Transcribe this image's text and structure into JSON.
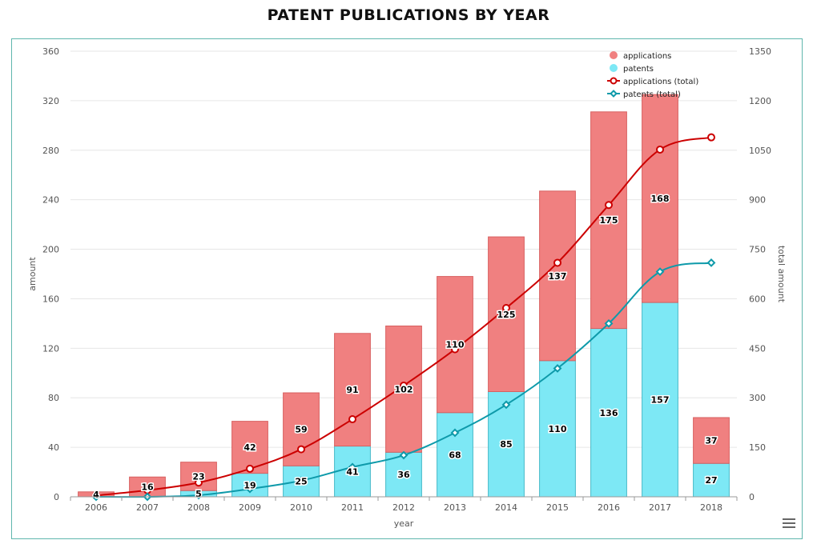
{
  "title": "PATENT PUBLICATIONS BY YEAR",
  "chart_data": {
    "type": "bar",
    "stacked": true,
    "title": "PATENT PUBLICATIONS BY YEAR",
    "xlabel": "year",
    "ylabel": "amount",
    "y2label": "total amount",
    "categories": [
      "2006",
      "2007",
      "2008",
      "2009",
      "2010",
      "2011",
      "2012",
      "2013",
      "2014",
      "2015",
      "2016",
      "2017",
      "2018"
    ],
    "ylim": [
      0,
      360
    ],
    "yticks": [
      0,
      40,
      80,
      120,
      160,
      200,
      240,
      280,
      320,
      360
    ],
    "y2lim": [
      0,
      1350
    ],
    "y2ticks": [
      0,
      150,
      300,
      450,
      600,
      750,
      900,
      1050,
      1200,
      1350
    ],
    "grid": true,
    "legend": "top-right",
    "series": [
      {
        "name": "applications",
        "kind": "bar",
        "axis": "left",
        "color": "#f08080",
        "values": [
          4,
          16,
          23,
          42,
          59,
          91,
          102,
          110,
          125,
          137,
          175,
          168,
          37
        ]
      },
      {
        "name": "patents",
        "kind": "bar",
        "axis": "left",
        "color": "#7de8f5",
        "values": [
          0,
          0,
          5,
          19,
          25,
          41,
          36,
          68,
          85,
          110,
          136,
          157,
          27
        ]
      },
      {
        "name": "applications (total)",
        "kind": "line",
        "axis": "right",
        "color": "#cc0000",
        "values": [
          4,
          20,
          43,
          85,
          144,
          235,
          337,
          447,
          572,
          709,
          884,
          1052,
          1089
        ]
      },
      {
        "name": "patents (total)",
        "kind": "line",
        "axis": "right",
        "color": "#0e9aaa",
        "values": [
          0,
          0,
          5,
          24,
          49,
          90,
          126,
          194,
          279,
          389,
          525,
          682,
          709
        ]
      }
    ]
  }
}
